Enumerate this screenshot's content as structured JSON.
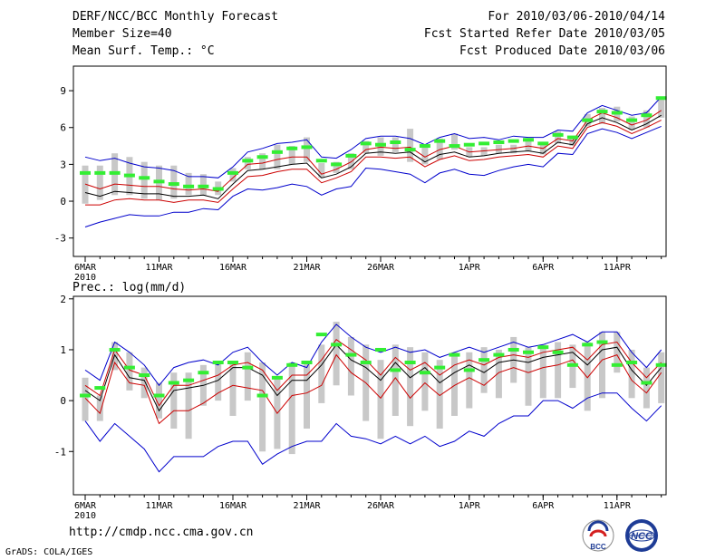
{
  "header": {
    "title": "DERF/NCC/BCC Monthly Forecast",
    "member_size": "Member Size=40",
    "variable": "Mean Surf. Temp.: °C",
    "period": "For 2010/03/06-2010/04/14",
    "refer_date": "Fcst Started Refer Date 2010/03/05",
    "produced_date": "Fcst Produced Date 2010/03/06"
  },
  "footer": {
    "url": "http://cmdp.ncc.cma.gov.cn",
    "credit": "GrADS: COLA/IGES",
    "logo_bcc": "BCC",
    "logo_ncc": "NCC"
  },
  "colors": {
    "frame": "#000000",
    "spread_bar": "#c8c8c8",
    "ensemble_mean": "#000000",
    "inner_band": "#cc0000",
    "outer_band": "#0000cc",
    "obs_marker": "#33ee33"
  },
  "chart_data": [
    {
      "type": "line",
      "title": "Mean Surf. Temp.: °C",
      "xlabel": "",
      "ylabel": "°C",
      "ylim": [
        -4.5,
        11
      ],
      "yticks": [
        -3,
        0,
        3,
        6,
        9
      ],
      "xticks": [
        {
          "day": 0,
          "label": "6MAR",
          "sub": "2010"
        },
        {
          "day": 5,
          "label": "11MAR"
        },
        {
          "day": 10,
          "label": "16MAR"
        },
        {
          "day": 15,
          "label": "21MAR"
        },
        {
          "day": 20,
          "label": "26MAR"
        },
        {
          "day": 26,
          "label": "1APR"
        },
        {
          "day": 31,
          "label": "6APR"
        },
        {
          "day": 36,
          "label": "11APR"
        }
      ],
      "days": [
        0,
        1,
        2,
        3,
        4,
        5,
        6,
        7,
        8,
        9,
        10,
        11,
        12,
        13,
        14,
        15,
        16,
        17,
        18,
        19,
        20,
        21,
        22,
        23,
        24,
        25,
        26,
        27,
        28,
        29,
        30,
        31,
        32,
        33,
        34,
        35,
        36,
        37,
        38,
        39
      ],
      "series": [
        {
          "name": "outer_upper",
          "values": [
            3.6,
            3.3,
            3.5,
            3.1,
            2.8,
            2.7,
            2.5,
            2.0,
            2.0,
            1.9,
            2.8,
            4.0,
            4.3,
            4.7,
            4.8,
            5.0,
            3.6,
            3.5,
            4.2,
            5.1,
            5.3,
            5.3,
            5.1,
            4.6,
            5.2,
            5.5,
            5.1,
            5.2,
            5.0,
            5.3,
            5.2,
            5.2,
            5.8,
            5.7,
            7.2,
            7.8,
            7.4,
            7.0,
            7.2,
            8.5
          ]
        },
        {
          "name": "inner_upper",
          "values": [
            1.4,
            1.0,
            1.4,
            1.3,
            1.2,
            1.2,
            1.0,
            0.9,
            1.0,
            0.8,
            1.9,
            3.0,
            3.1,
            3.4,
            3.6,
            3.6,
            2.2,
            2.6,
            3.2,
            4.2,
            4.4,
            4.3,
            4.4,
            3.6,
            4.2,
            4.5,
            4.0,
            4.1,
            4.2,
            4.3,
            4.5,
            4.3,
            5.1,
            4.9,
            6.6,
            7.2,
            6.8,
            6.2,
            6.6,
            7.4
          ]
        },
        {
          "name": "ensemble_mean",
          "values": [
            0.7,
            0.4,
            0.8,
            0.7,
            0.6,
            0.6,
            0.4,
            0.4,
            0.5,
            0.2,
            1.4,
            2.5,
            2.6,
            2.8,
            3.0,
            3.1,
            1.9,
            2.2,
            2.8,
            3.9,
            4.0,
            3.9,
            4.0,
            3.2,
            3.8,
            4.0,
            3.6,
            3.7,
            3.9,
            4.0,
            4.1,
            3.9,
            4.8,
            4.6,
            6.3,
            6.8,
            6.4,
            5.8,
            6.3,
            7.0
          ]
        },
        {
          "name": "inner_lower",
          "values": [
            -0.3,
            -0.3,
            0.1,
            0.2,
            0.1,
            0.1,
            -0.1,
            0.1,
            0.1,
            -0.1,
            1.0,
            2.0,
            2.1,
            2.4,
            2.6,
            2.6,
            1.5,
            1.9,
            2.4,
            3.6,
            3.6,
            3.5,
            3.6,
            2.8,
            3.4,
            3.7,
            3.3,
            3.4,
            3.6,
            3.7,
            3.8,
            3.6,
            4.5,
            4.3,
            6.0,
            6.4,
            6.1,
            5.5,
            6.0,
            6.6
          ]
        },
        {
          "name": "outer_lower",
          "values": [
            -2.1,
            -1.7,
            -1.4,
            -1.1,
            -1.2,
            -1.2,
            -0.9,
            -0.9,
            -0.6,
            -0.7,
            0.4,
            1.0,
            0.9,
            1.1,
            1.4,
            1.2,
            0.5,
            1.0,
            1.2,
            2.7,
            2.6,
            2.4,
            2.2,
            1.5,
            2.3,
            2.6,
            2.2,
            2.1,
            2.5,
            2.8,
            3.0,
            2.8,
            3.9,
            3.8,
            5.5,
            5.9,
            5.6,
            5.1,
            5.6,
            6.1
          ]
        },
        {
          "name": "bar_top",
          "values": [
            2.9,
            2.9,
            3.9,
            3.6,
            3.2,
            2.9,
            2.9,
            2.3,
            2.2,
            1.6,
            2.7,
            3.6,
            3.9,
            4.6,
            4.5,
            5.2,
            3.1,
            3.2,
            3.9,
            4.9,
            5.2,
            5.2,
            5.9,
            4.6,
            5.1,
            5.5,
            4.4,
            4.4,
            4.6,
            4.6,
            4.9,
            4.6,
            5.7,
            5.2,
            7.1,
            7.6,
            7.7,
            6.9,
            7.4,
            8.4
          ]
        },
        {
          "name": "bar_bottom",
          "values": [
            -0.2,
            0.1,
            0.5,
            0.5,
            0.2,
            0.1,
            0.2,
            0.5,
            0.5,
            0.5,
            1.6,
            2.6,
            2.6,
            2.6,
            3.0,
            3.2,
            1.9,
            2.3,
            2.6,
            3.9,
            3.7,
            4.0,
            3.2,
            3.0,
            3.4,
            4.2,
            3.6,
            3.7,
            3.9,
            3.9,
            4.1,
            3.8,
            4.7,
            4.5,
            6.1,
            6.3,
            6.5,
            5.8,
            6.0,
            6.8
          ]
        },
        {
          "name": "observed",
          "values": [
            2.3,
            2.3,
            2.3,
            2.1,
            1.9,
            1.6,
            1.4,
            1.2,
            1.2,
            1.0,
            2.3,
            3.3,
            3.6,
            4.0,
            4.3,
            4.4,
            3.3,
            3.0,
            3.7,
            4.7,
            4.6,
            4.8,
            4.2,
            4.5,
            4.9,
            4.5,
            4.6,
            4.7,
            4.8,
            4.9,
            5.0,
            4.7,
            5.4,
            5.2,
            6.6,
            7.3,
            7.2,
            6.6,
            7.0,
            8.4
          ]
        }
      ]
    },
    {
      "type": "line",
      "title": "Prec.: log(mm/d)",
      "xlabel": "",
      "ylabel": "log(mm/d)",
      "ylim": [
        -1.85,
        2.05
      ],
      "yticks": [
        -1,
        0,
        1,
        2
      ],
      "xticks": [
        {
          "day": 0,
          "label": "6MAR",
          "sub": "2010"
        },
        {
          "day": 5,
          "label": "11MAR"
        },
        {
          "day": 10,
          "label": "16MAR"
        },
        {
          "day": 15,
          "label": "21MAR"
        },
        {
          "day": 20,
          "label": "26MAR"
        },
        {
          "day": 26,
          "label": "1APR"
        },
        {
          "day": 31,
          "label": "6APR"
        },
        {
          "day": 36,
          "label": "11APR"
        }
      ],
      "days": [
        0,
        1,
        2,
        3,
        4,
        5,
        6,
        7,
        8,
        9,
        10,
        11,
        12,
        13,
        14,
        15,
        16,
        17,
        18,
        19,
        20,
        21,
        22,
        23,
        24,
        25,
        26,
        27,
        28,
        29,
        30,
        31,
        32,
        33,
        34,
        35,
        36,
        37,
        38,
        39
      ],
      "series": [
        {
          "name": "outer_upper",
          "values": [
            0.6,
            0.4,
            1.15,
            0.95,
            0.7,
            0.3,
            0.65,
            0.75,
            0.8,
            0.7,
            0.95,
            1.05,
            0.75,
            0.5,
            0.75,
            0.65,
            1.15,
            1.5,
            1.25,
            1.05,
            0.95,
            1.05,
            0.95,
            1.0,
            0.85,
            0.95,
            1.05,
            0.95,
            1.05,
            1.15,
            1.05,
            1.1,
            1.2,
            1.3,
            1.15,
            1.35,
            1.35,
            0.95,
            0.65,
            1.0
          ]
        },
        {
          "name": "inner_upper",
          "values": [
            0.3,
            0.1,
            1.0,
            0.6,
            0.5,
            -0.1,
            0.3,
            0.3,
            0.4,
            0.5,
            0.7,
            0.75,
            0.6,
            0.2,
            0.5,
            0.5,
            0.8,
            1.2,
            1.0,
            0.8,
            0.5,
            0.85,
            0.6,
            0.75,
            0.5,
            0.7,
            0.8,
            0.7,
            0.85,
            0.9,
            0.85,
            0.95,
            1.0,
            1.05,
            0.8,
            1.1,
            1.15,
            0.75,
            0.45,
            0.75
          ]
        },
        {
          "name": "ensemble_mean",
          "values": [
            0.2,
            -0.0,
            0.9,
            0.45,
            0.4,
            -0.2,
            0.2,
            0.25,
            0.3,
            0.4,
            0.65,
            0.65,
            0.5,
            0.1,
            0.4,
            0.4,
            0.7,
            1.1,
            0.8,
            0.65,
            0.4,
            0.75,
            0.45,
            0.65,
            0.35,
            0.55,
            0.7,
            0.55,
            0.75,
            0.8,
            0.75,
            0.85,
            0.9,
            0.95,
            0.7,
            1.0,
            1.05,
            0.6,
            0.3,
            0.65
          ]
        },
        {
          "name": "inner_lower",
          "values": [
            0.05,
            -0.25,
            0.75,
            0.35,
            0.3,
            -0.45,
            -0.2,
            -0.2,
            -0.05,
            0.15,
            0.3,
            0.25,
            0.2,
            -0.25,
            0.1,
            0.15,
            0.3,
            0.9,
            0.55,
            0.35,
            0.05,
            0.45,
            0.05,
            0.35,
            0.1,
            0.3,
            0.45,
            0.3,
            0.55,
            0.65,
            0.55,
            0.65,
            0.7,
            0.8,
            0.45,
            0.8,
            0.9,
            0.4,
            0.15,
            0.55
          ]
        },
        {
          "name": "outer_lower",
          "values": [
            -0.4,
            -0.8,
            -0.45,
            -0.7,
            -0.95,
            -1.4,
            -1.1,
            -1.1,
            -1.1,
            -0.9,
            -0.8,
            -0.8,
            -1.25,
            -1.05,
            -0.9,
            -0.8,
            -0.8,
            -0.45,
            -0.7,
            -0.75,
            -0.85,
            -0.7,
            -0.85,
            -0.7,
            -0.9,
            -0.8,
            -0.6,
            -0.7,
            -0.45,
            -0.3,
            -0.3,
            0.0,
            0.0,
            -0.15,
            0.05,
            0.15,
            0.15,
            -0.15,
            -0.4,
            -0.1
          ]
        },
        {
          "name": "bar_top",
          "values": [
            0.45,
            0.1,
            1.15,
            0.95,
            0.65,
            0.35,
            0.55,
            0.55,
            0.7,
            0.75,
            0.75,
            0.95,
            0.75,
            0.45,
            0.75,
            0.75,
            1.1,
            1.55,
            1.25,
            1.1,
            0.8,
            1.1,
            1.05,
            0.95,
            0.8,
            0.95,
            0.95,
            1.05,
            1.0,
            1.25,
            1.05,
            1.1,
            1.15,
            1.1,
            1.15,
            1.35,
            1.35,
            1.0,
            0.65,
            0.95
          ]
        },
        {
          "name": "bar_bottom",
          "values": [
            -0.4,
            -0.4,
            0.6,
            0.2,
            0.05,
            -0.35,
            -0.55,
            -0.75,
            -0.1,
            0.0,
            -0.3,
            0.0,
            -1.0,
            -0.95,
            -1.05,
            -0.55,
            -0.05,
            0.3,
            0.1,
            -0.4,
            -0.75,
            -0.3,
            -0.5,
            -0.2,
            -0.55,
            -0.3,
            -0.15,
            0.15,
            0.05,
            0.35,
            -0.1,
            0.05,
            0.05,
            0.25,
            -0.2,
            0.05,
            0.55,
            0.05,
            -0.15,
            -0.05
          ]
        },
        {
          "name": "observed",
          "values": [
            0.1,
            0.25,
            1.0,
            0.65,
            0.5,
            0.1,
            0.35,
            0.4,
            0.55,
            0.75,
            0.75,
            0.65,
            0.1,
            0.45,
            0.7,
            0.75,
            1.3,
            1.1,
            0.9,
            0.75,
            1.0,
            0.6,
            0.75,
            0.55,
            0.65,
            0.9,
            0.6,
            0.8,
            0.9,
            1.0,
            0.95,
            1.05,
            0.95,
            0.7,
            1.1,
            1.15,
            0.7,
            0.75,
            0.35,
            0.7
          ]
        }
      ]
    }
  ]
}
